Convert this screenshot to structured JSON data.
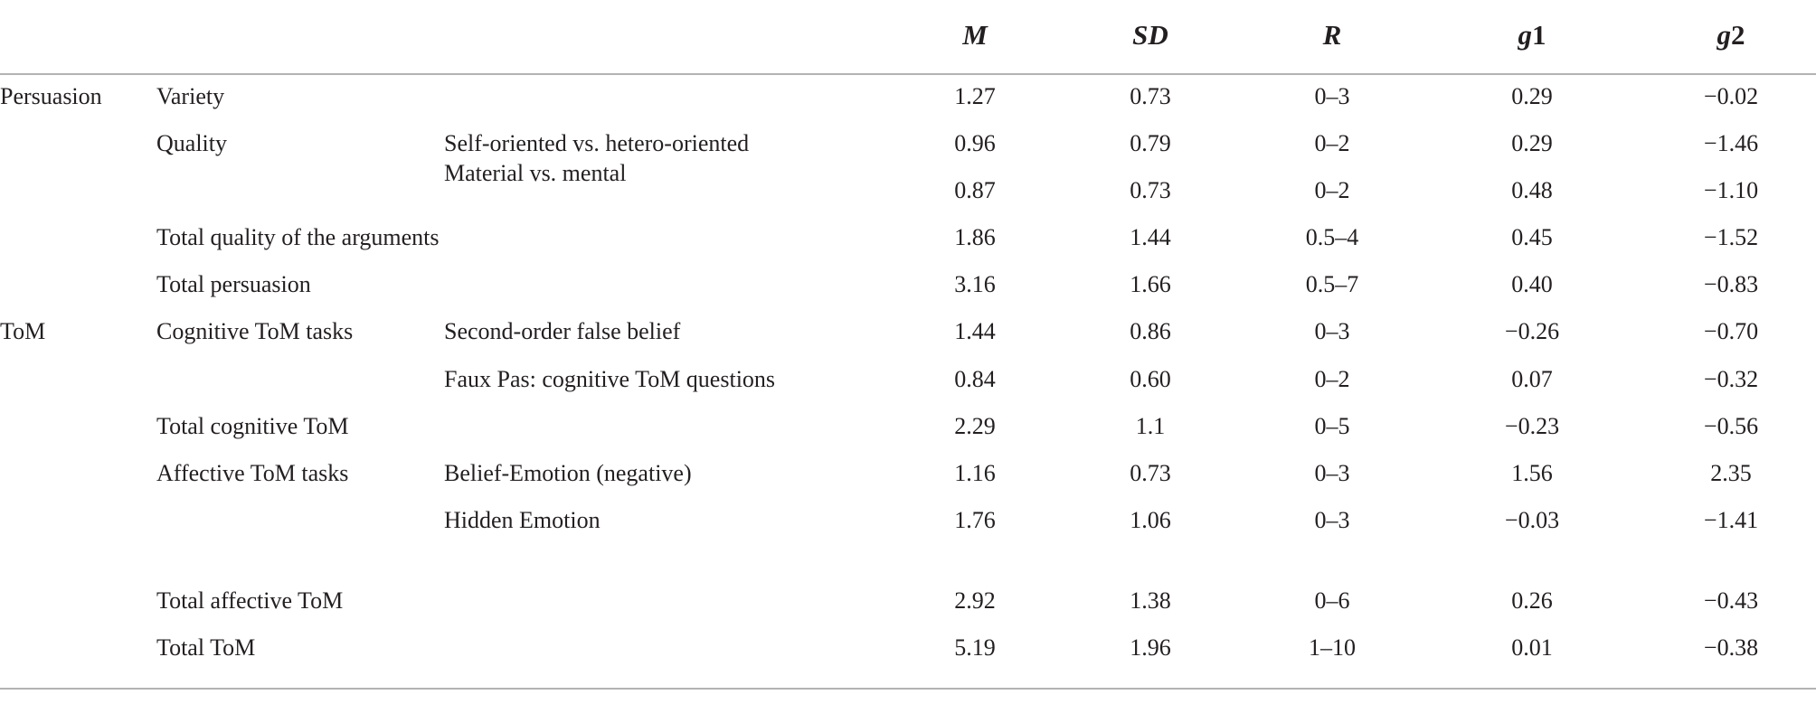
{
  "table": {
    "headers": {
      "m": "M",
      "sd": "SD",
      "r": "R",
      "g1_letter": "g",
      "g1_digit": "1",
      "g2_letter": "g",
      "g2_digit": "2"
    },
    "rows": [
      {
        "c1": "Persuasion",
        "c2": "Variety",
        "c3": "",
        "m": "1.27",
        "sd": "0.73",
        "r": "0–3",
        "g1": "0.29",
        "g2": "−0.02"
      },
      {
        "c1": "",
        "c2": "Quality",
        "c3": "Self-oriented vs. hetero-oriented",
        "m": "0.96",
        "sd": "0.79",
        "r": "0–2",
        "g1": "0.29",
        "g2": "−1.46"
      },
      {
        "c1": "",
        "c2": "",
        "c3": "Material vs. mental",
        "m": "0.87",
        "sd": "0.73",
        "r": "0–2",
        "g1": "0.48",
        "g2": "−1.10"
      },
      {
        "c1": "",
        "c2": "Total quality of the arguments",
        "c3": "",
        "m": "1.86",
        "sd": "1.44",
        "r": "0.5–4",
        "g1": "0.45",
        "g2": "−1.52"
      },
      {
        "c1": "",
        "c2": "Total persuasion",
        "c3": "",
        "m": "3.16",
        "sd": "1.66",
        "r": "0.5–7",
        "g1": "0.40",
        "g2": "−0.83"
      },
      {
        "c1": "ToM",
        "c2": "Cognitive ToM tasks",
        "c3": "Second-order false belief",
        "m": "1.44",
        "sd": "0.86",
        "r": "0–3",
        "g1": "−0.26",
        "g2": "−0.70"
      },
      {
        "c1": "",
        "c2": "",
        "c3": "Faux Pas: cognitive ToM questions",
        "m": "0.84",
        "sd": "0.60",
        "r": "0–2",
        "g1": "0.07",
        "g2": "−0.32"
      },
      {
        "c1": "",
        "c2": "Total cognitive ToM",
        "c3": "",
        "m": "2.29",
        "sd": "1.1",
        "r": "0–5",
        "g1": "−0.23",
        "g2": "−0.56"
      },
      {
        "c1": "",
        "c2": "Affective ToM tasks",
        "c3": "Belief-Emotion (negative)",
        "m": "1.16",
        "sd": "0.73",
        "r": "0–3",
        "g1": "1.56",
        "g2": "2.35"
      },
      {
        "c1": "",
        "c2": "",
        "c3": "Hidden Emotion",
        "m": "1.76",
        "sd": "1.06",
        "r": "0–3",
        "g1": "−0.03",
        "g2": "−1.41"
      },
      {
        "c1": "",
        "c2": "Total affective ToM",
        "c3": "",
        "m": "2.92",
        "sd": "1.38",
        "r": "0–6",
        "g1": "0.26",
        "g2": "−0.43"
      },
      {
        "c1": "",
        "c2": "Total ToM",
        "c3": "",
        "m": "5.19",
        "sd": "1.96",
        "r": "1–10",
        "g1": "0.01",
        "g2": "−0.38"
      }
    ]
  }
}
